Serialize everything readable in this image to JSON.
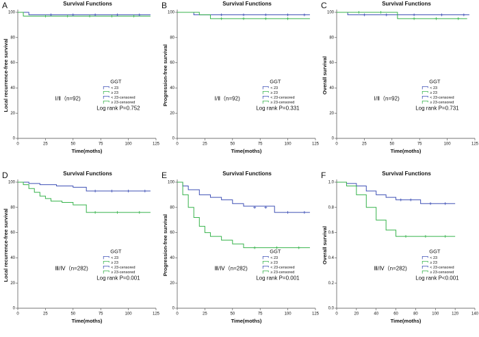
{
  "chart_data": [
    {
      "type": "line",
      "step": true,
      "panel_label": "A",
      "title": "Survival Functions",
      "x_label": "Time(moths)",
      "y_label": "Local recurrence-free survival",
      "legend_title": "GGT",
      "annotations": [
        "Ⅰ/Ⅱ（n=92)",
        "Log rank  P=0.752"
      ],
      "xlim": [
        0,
        125
      ],
      "xticks": [
        0,
        25,
        50,
        75,
        100,
        125
      ],
      "ylim": [
        0,
        100
      ],
      "yticks": [
        0,
        20,
        40,
        60,
        80,
        100
      ],
      "series": [
        {
          "name": "< 23",
          "color": "#3d4fb5",
          "x": [
            0,
            10,
            120
          ],
          "values": [
            100,
            98,
            98
          ]
        },
        {
          "name": "≥ 23",
          "color": "#35b24a",
          "x": [
            0,
            5,
            120
          ],
          "values": [
            100,
            97,
            97
          ]
        },
        {
          "name": "< 23-censored",
          "color": "#3d4fb5",
          "marker": "+",
          "x": [
            30,
            50,
            70,
            90,
            110
          ],
          "values": [
            98,
            98,
            98,
            98,
            98
          ]
        },
        {
          "name": "≥ 23-censored",
          "color": "#35b24a",
          "marker": "+",
          "x": [
            25,
            45,
            65,
            85,
            105
          ],
          "values": [
            97,
            97,
            97,
            97,
            97
          ]
        }
      ]
    },
    {
      "type": "line",
      "step": true,
      "panel_label": "B",
      "title": "Survival Functions",
      "x_label": "Time(moths)",
      "y_label": "Progression-free survival",
      "legend_title": "GGT",
      "annotations": [
        "Ⅰ/Ⅱ（n=92)",
        "Log rank  P=0.331"
      ],
      "xlim": [
        0,
        125
      ],
      "xticks": [
        0,
        25,
        50,
        75,
        100,
        125
      ],
      "ylim": [
        0,
        100
      ],
      "yticks": [
        0,
        20,
        40,
        60,
        80,
        100
      ],
      "series": [
        {
          "name": "< 23",
          "color": "#3d4fb5",
          "x": [
            0,
            15,
            120
          ],
          "values": [
            100,
            98,
            98
          ]
        },
        {
          "name": "≥ 23",
          "color": "#35b24a",
          "x": [
            0,
            20,
            30,
            120
          ],
          "values": [
            100,
            98,
            95,
            95
          ]
        },
        {
          "name": "< 23-censored",
          "color": "#3d4fb5",
          "marker": "+",
          "x": [
            40,
            60,
            80,
            100,
            115
          ],
          "values": [
            98,
            98,
            98,
            98,
            98
          ]
        },
        {
          "name": "≥ 23-censored",
          "color": "#35b24a",
          "marker": "+",
          "x": [
            40,
            60,
            80,
            100
          ],
          "values": [
            95,
            95,
            95,
            95
          ]
        }
      ]
    },
    {
      "type": "line",
      "step": true,
      "panel_label": "C",
      "title": "Survival Functions",
      "x_label": "Time(moths)",
      "y_label": "Overall survival",
      "legend_title": "GGT",
      "annotations": [
        "Ⅰ/Ⅱ（n=92)",
        "Log rank  P=0.731"
      ],
      "xlim": [
        0,
        125
      ],
      "xticks": [
        0,
        25,
        50,
        75,
        100,
        125
      ],
      "ylim": [
        0,
        100
      ],
      "yticks": [
        0,
        20,
        40,
        60,
        80,
        100
      ],
      "series": [
        {
          "name": "< 23",
          "color": "#3d4fb5",
          "x": [
            0,
            10,
            120
          ],
          "values": [
            100,
            98,
            98
          ]
        },
        {
          "name": "≥ 23",
          "color": "#35b24a",
          "x": [
            0,
            55,
            118
          ],
          "values": [
            100,
            95,
            95
          ]
        },
        {
          "name": "< 23-censored",
          "color": "#3d4fb5",
          "marker": "+",
          "x": [
            25,
            45,
            70,
            95,
            115
          ],
          "values": [
            98,
            98,
            98,
            98,
            98
          ]
        },
        {
          "name": "≥ 23-censored",
          "color": "#35b24a",
          "marker": "+",
          "x": [
            20,
            40,
            70,
            90,
            110
          ],
          "values": [
            100,
            100,
            95,
            95,
            95
          ]
        }
      ]
    },
    {
      "type": "line",
      "step": true,
      "panel_label": "D",
      "title": "Survival Functions",
      "x_label": "Time(moths)",
      "y_label": "Local recurrence-free survival",
      "legend_title": "GGT",
      "annotations": [
        "Ⅲ/Ⅳ（n=282)",
        "Log rank  P=0.001"
      ],
      "xlim": [
        0,
        125
      ],
      "xticks": [
        0,
        25,
        50,
        75,
        100,
        125
      ],
      "ylim": [
        0,
        100
      ],
      "yticks": [
        0,
        20,
        40,
        60,
        80,
        100
      ],
      "series": [
        {
          "name": "< 23",
          "color": "#3d4fb5",
          "x": [
            0,
            10,
            20,
            35,
            50,
            62,
            120
          ],
          "values": [
            100,
            99,
            98,
            97,
            96,
            93,
            93
          ]
        },
        {
          "name": "≥ 23",
          "color": "#35b24a",
          "x": [
            0,
            5,
            10,
            15,
            20,
            25,
            30,
            40,
            50,
            60,
            62,
            120
          ],
          "values": [
            100,
            98,
            95,
            92,
            89,
            87,
            85,
            84,
            82,
            82,
            76,
            76
          ]
        },
        {
          "name": "< 23-censored",
          "color": "#3d4fb5",
          "marker": "+",
          "x": [
            70,
            85,
            100,
            115
          ],
          "values": [
            93,
            93,
            93,
            93
          ]
        },
        {
          "name": "≥ 23-censored",
          "color": "#35b24a",
          "marker": "+",
          "x": [
            70,
            90,
            110
          ],
          "values": [
            76,
            76,
            76
          ]
        }
      ]
    },
    {
      "type": "line",
      "step": true,
      "panel_label": "E",
      "title": "Survival Functions",
      "x_label": "Time(moths)",
      "y_label": "Progression-free survival",
      "legend_title": "GGT",
      "annotations": [
        "Ⅲ/Ⅳ（n=282)",
        "Log rank  P=0.001"
      ],
      "xlim": [
        0,
        125
      ],
      "xticks": [
        0,
        25,
        50,
        75,
        100,
        125
      ],
      "ylim": [
        0,
        100
      ],
      "yticks": [
        0,
        20,
        40,
        60,
        80,
        100
      ],
      "series": [
        {
          "name": "< 23",
          "color": "#3d4fb5",
          "x": [
            0,
            5,
            10,
            20,
            30,
            40,
            50,
            60,
            88,
            120
          ],
          "values": [
            100,
            97,
            94,
            90,
            88,
            86,
            83,
            81,
            76,
            76
          ]
        },
        {
          "name": "≥ 23",
          "color": "#35b24a",
          "x": [
            0,
            5,
            10,
            15,
            20,
            25,
            30,
            40,
            50,
            60,
            120
          ],
          "values": [
            100,
            90,
            80,
            72,
            65,
            60,
            57,
            54,
            51,
            48,
            48
          ]
        },
        {
          "name": "< 23-censored",
          "color": "#3d4fb5",
          "marker": "+",
          "x": [
            70,
            80,
            100,
            115
          ],
          "values": [
            80,
            80,
            76,
            76
          ]
        },
        {
          "name": "≥ 23-censored",
          "color": "#35b24a",
          "marker": "+",
          "x": [
            70,
            90,
            110
          ],
          "values": [
            48,
            48,
            48
          ]
        }
      ]
    },
    {
      "type": "line",
      "step": true,
      "panel_label": "F",
      "title": "Survival Functions",
      "x_label": "Time(moths)",
      "y_label": "Overall survival",
      "legend_title": "GGT",
      "annotations": [
        "Ⅲ/Ⅳ（n=282)",
        "Log rank  P<0.001"
      ],
      "xlim": [
        0,
        140
      ],
      "xticks": [
        0,
        20,
        40,
        60,
        80,
        100,
        120,
        140
      ],
      "ylim": [
        0,
        1
      ],
      "yticks": [
        {
          "value": 0,
          "label": "0.0"
        },
        {
          "value": 0.2,
          "label": "0.2"
        },
        {
          "value": 0.4,
          "label": "0.4"
        },
        {
          "value": 0.6,
          "label": "0.6"
        },
        {
          "value": 0.8,
          "label": "0.8"
        },
        {
          "value": 1,
          "label": "1.0"
        }
      ],
      "series": [
        {
          "name": "< 23",
          "color": "#3d4fb5",
          "x": [
            0,
            10,
            20,
            30,
            40,
            50,
            60,
            85,
            120
          ],
          "values": [
            1,
            0.99,
            0.97,
            0.93,
            0.9,
            0.88,
            0.86,
            0.83,
            0.83
          ]
        },
        {
          "name": "≥ 23",
          "color": "#35b24a",
          "x": [
            0,
            10,
            20,
            30,
            40,
            50,
            60,
            120
          ],
          "values": [
            1,
            0.97,
            0.9,
            0.8,
            0.7,
            0.62,
            0.57,
            0.57
          ]
        },
        {
          "name": "< 23-censored",
          "color": "#3d4fb5",
          "marker": "+",
          "x": [
            65,
            75,
            95,
            110
          ],
          "values": [
            0.86,
            0.86,
            0.83,
            0.83
          ]
        },
        {
          "name": "≥ 23-censored",
          "color": "#35b24a",
          "marker": "+",
          "x": [
            70,
            90,
            110
          ],
          "values": [
            0.57,
            0.57,
            0.57
          ]
        }
      ]
    }
  ]
}
